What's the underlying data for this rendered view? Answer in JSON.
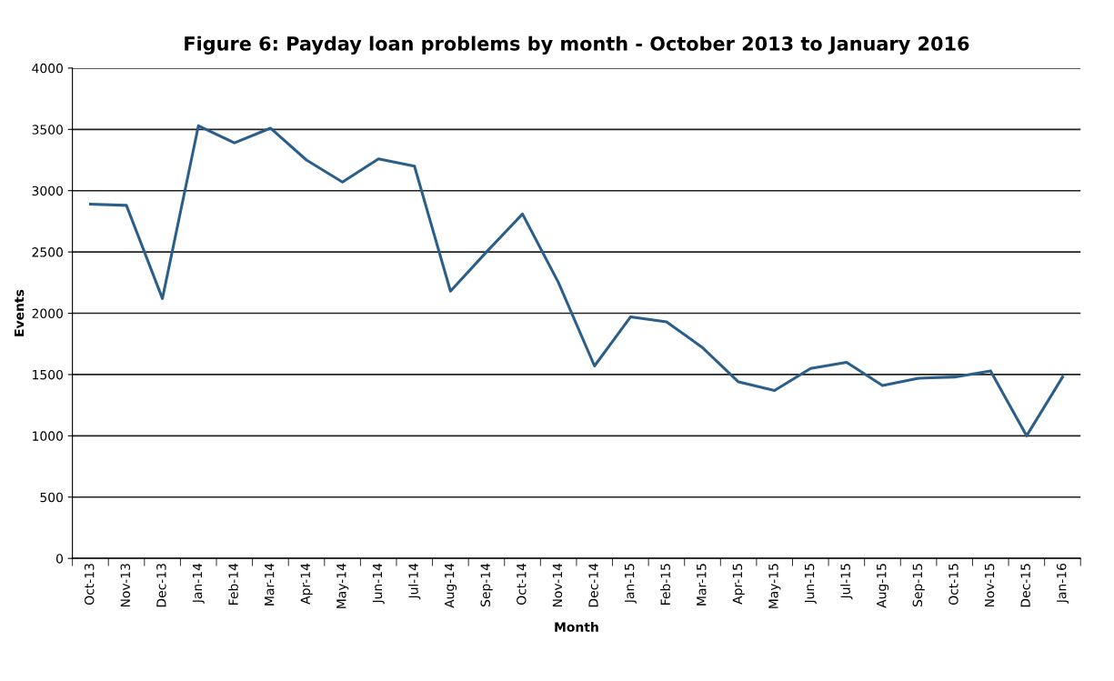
{
  "chart_data": {
    "type": "line",
    "title": "Figure 6: Payday loan problems by month - October 2013 to January 2016",
    "xlabel": "Month",
    "ylabel": "Events",
    "categories": [
      "Oct-13",
      "Nov-13",
      "Dec-13",
      "Jan-14",
      "Feb-14",
      "Mar-14",
      "Apr-14",
      "May-14",
      "Jun-14",
      "Jul-14",
      "Aug-14",
      "Sep-14",
      "Oct-14",
      "Nov-14",
      "Dec-14",
      "Jan-15",
      "Feb-15",
      "Mar-15",
      "Apr-15",
      "May-15",
      "Jun-15",
      "Jul-15",
      "Aug-15",
      "Sep-15",
      "Oct-15",
      "Nov-15",
      "Dec-15",
      "Jan-16"
    ],
    "series": [
      {
        "color": "#2b5f8a",
        "values": [
          2890,
          2880,
          2120,
          3530,
          3390,
          3510,
          3250,
          3070,
          3260,
          3200,
          2180,
          2500,
          2810,
          2250,
          1570,
          1970,
          1930,
          1720,
          1440,
          1370,
          1550,
          1600,
          1410,
          1470,
          1480,
          1530,
          1000,
          1480
        ]
      }
    ],
    "ylim": [
      0,
      4000
    ],
    "yticks": [
      0,
      500,
      1000,
      1500,
      2000,
      2500,
      3000,
      3500,
      4000
    ],
    "grid": "y",
    "legend": false,
    "marker": "none",
    "line_style": "solid"
  }
}
